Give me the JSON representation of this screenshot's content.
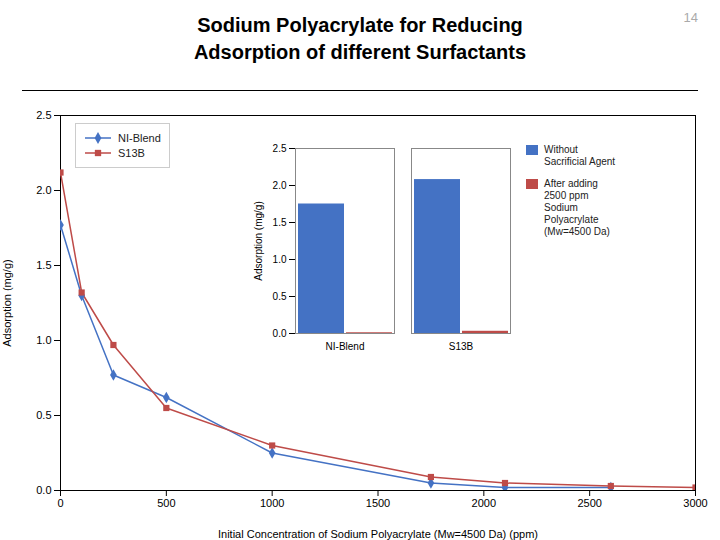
{
  "chart_data": [
    {
      "type": "line",
      "title": "Sodium Polyacrylate for Reducing\nAdsorption of different Surfactants",
      "annotations": [
        "14"
      ],
      "xlabel": "Initial Concentration of Sodium Polyacrylate (Mw=4500 Da) (ppm)",
      "ylabel": "Adsorption (mg/g)",
      "xlim": [
        0,
        3000
      ],
      "ylim": [
        0,
        2.5
      ],
      "xticks": [
        0,
        500,
        1000,
        1500,
        2000,
        2500,
        3000
      ],
      "yticks": [
        {
          "value": 0,
          "label": "0.0"
        },
        0.5,
        {
          "value": 1.0,
          "label": "1.0"
        },
        1.5,
        {
          "value": 2.0,
          "label": "2.0"
        },
        2.5
      ],
      "grid": false,
      "legend": "upper left",
      "series": [
        {
          "name": "NI-Blend",
          "color": "#4472C4",
          "marker": "diamond",
          "x": [
            0,
            100,
            250,
            500,
            1000,
            1750,
            2100,
            2600
          ],
          "values": [
            1.77,
            1.3,
            0.77,
            0.62,
            0.25,
            0.05,
            0.02,
            0.02
          ]
        },
        {
          "name": "S13B",
          "color": "#BE4B48",
          "marker": "square",
          "x": [
            0,
            100,
            250,
            500,
            1000,
            1750,
            2100,
            2600,
            3000
          ],
          "values": [
            2.12,
            1.32,
            0.97,
            0.55,
            0.3,
            0.09,
            0.05,
            0.03,
            0.02
          ]
        }
      ]
    },
    {
      "type": "bar",
      "ylabel": "Adsorption (mg/g)",
      "categories": [
        "NI-Blend",
        "S13B"
      ],
      "ylim": [
        0,
        2.5
      ],
      "yticks": [
        {
          "value": 0,
          "label": "0.0"
        },
        0.5,
        {
          "value": 1.0,
          "label": "1.0"
        },
        1.5,
        {
          "value": 2.0,
          "label": "2.0"
        },
        2.5
      ],
      "grid": false,
      "legend": "right",
      "series": [
        {
          "name": "Without\nSacrificial Agent",
          "color": "#4472C4",
          "values": [
            1.75,
            2.08
          ]
        },
        {
          "name": "After adding\n2500 ppm\nSodium\nPolyacrylate\n(Mw=4500 Da)",
          "color": "#BE4B48",
          "values": [
            0.01,
            0.03
          ]
        }
      ]
    }
  ]
}
